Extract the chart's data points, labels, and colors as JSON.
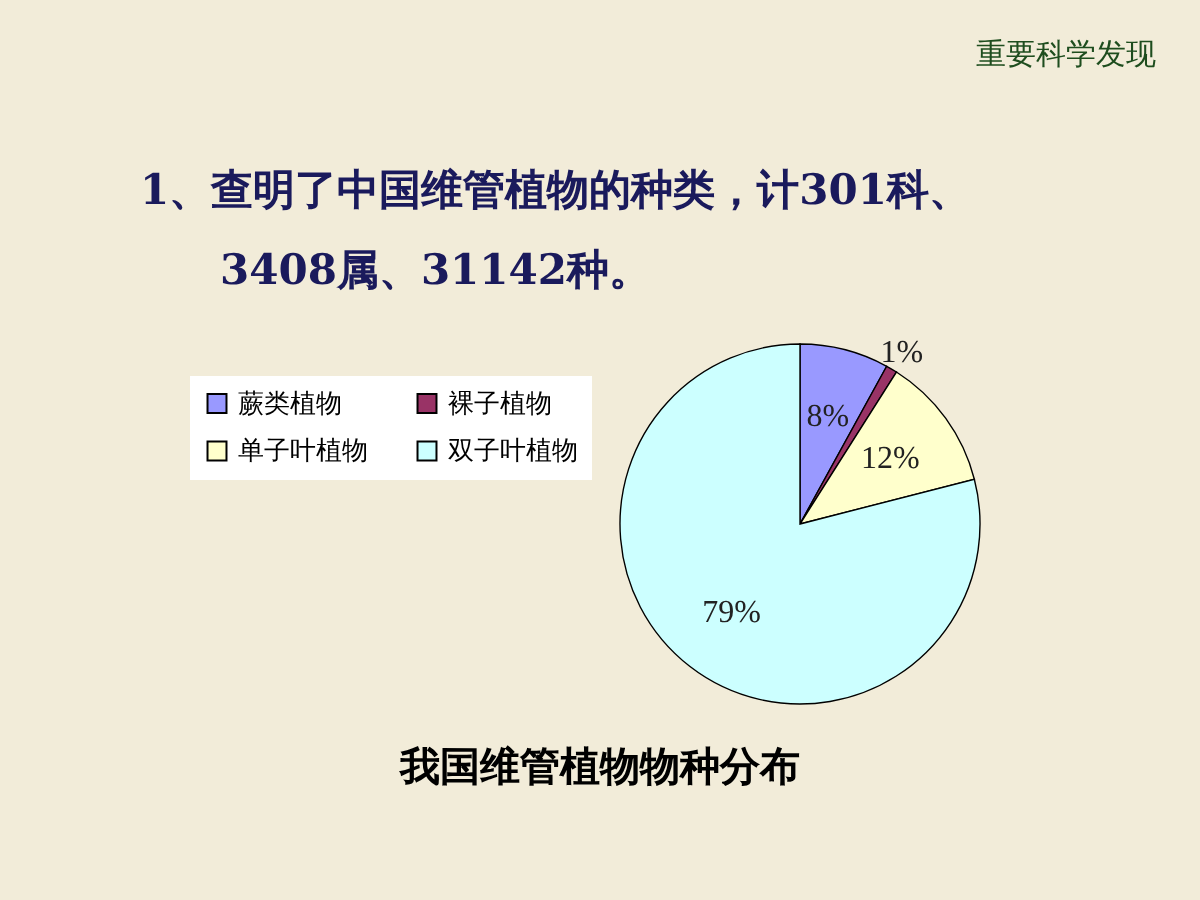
{
  "chart_data": {
    "type": "pie",
    "title": "我国维管植物物种分布",
    "categories": [
      "蕨类植物",
      "裸子植物",
      "单子叶植物",
      "双子叶植物"
    ],
    "values": [
      8,
      1,
      12,
      79
    ],
    "colors": [
      "#9999ff",
      "#993366",
      "#ffffcc",
      "#ccffff"
    ],
    "value_labels": [
      "8%",
      "1%",
      "12%",
      "79%"
    ],
    "legend": "top left",
    "annotations": [
      "重要科学发现",
      "1、查明了中国维管植物的种类，计301科、",
      "3408属、31142种。"
    ]
  }
}
